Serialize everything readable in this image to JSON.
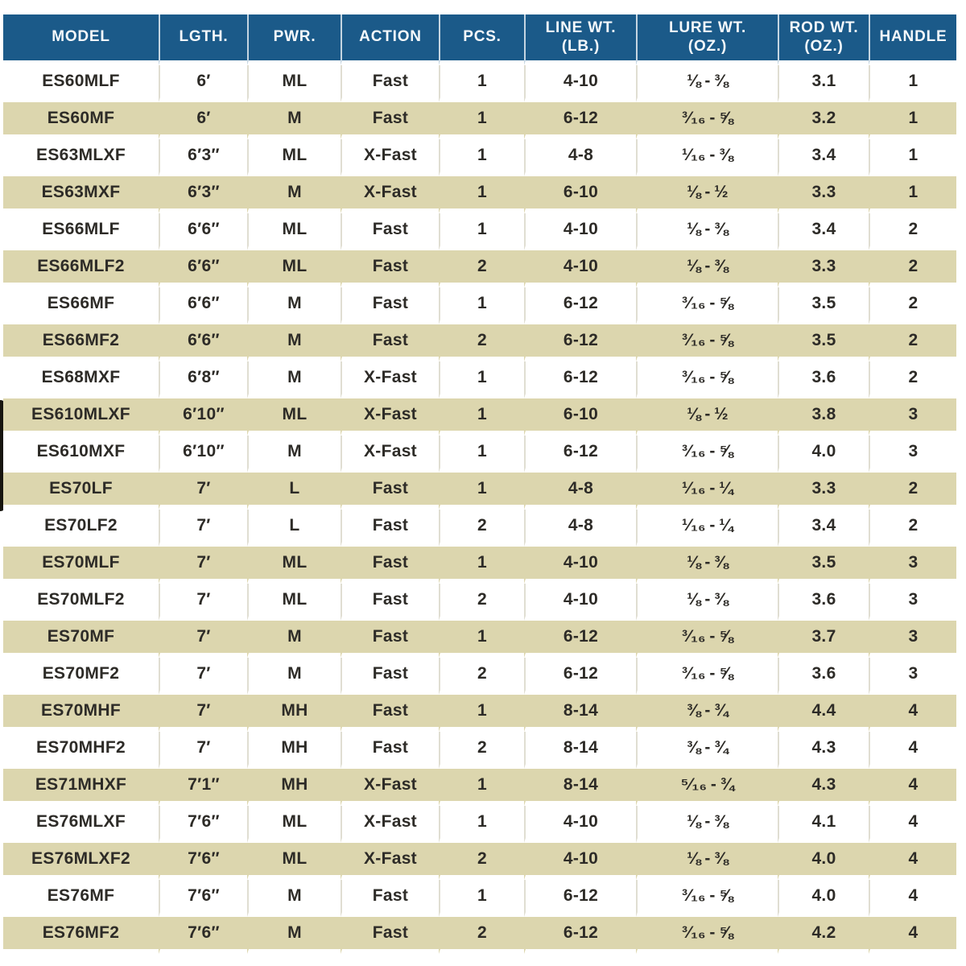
{
  "colors": {
    "header_bg": "#1b5a89",
    "header_text": "#f4f8fb",
    "row_bg": "#ffffff",
    "row_alt_bg": "#dcd6ae",
    "divider": "#e0ded2",
    "body_text": "#2d2b27"
  },
  "table": {
    "columns": [
      {
        "key": "model",
        "label": "MODEL"
      },
      {
        "key": "length",
        "label": "LGTH."
      },
      {
        "key": "power",
        "label": "PWR."
      },
      {
        "key": "action",
        "label": "ACTION"
      },
      {
        "key": "pieces",
        "label": "PCS."
      },
      {
        "key": "line_wt",
        "label": "LINE WT.",
        "sub": "(LB.)"
      },
      {
        "key": "lure_wt",
        "label": "LURE WT.",
        "sub": "(OZ.)"
      },
      {
        "key": "rod_wt",
        "label": "ROD WT.",
        "sub": "(OZ.)"
      },
      {
        "key": "handle",
        "label": "HANDLE"
      }
    ],
    "rows": [
      [
        "ES60MLF",
        "6′",
        "ML",
        "Fast",
        "1",
        "4-10",
        "⅛ - ⅜",
        "3.1",
        "1"
      ],
      [
        "ES60MF",
        "6′",
        "M",
        "Fast",
        "1",
        "6-12",
        "³⁄₁₆ - ⅝",
        "3.2",
        "1"
      ],
      [
        "ES63MLXF",
        "6′3″",
        "ML",
        "X-Fast",
        "1",
        "4-8",
        "¹⁄₁₆ - ⅜",
        "3.4",
        "1"
      ],
      [
        "ES63MXF",
        "6′3″",
        "M",
        "X-Fast",
        "1",
        "6-10",
        "⅛ - ½",
        "3.3",
        "1"
      ],
      [
        "ES66MLF",
        "6′6″",
        "ML",
        "Fast",
        "1",
        "4-10",
        "⅛ - ⅜",
        "3.4",
        "2"
      ],
      [
        "ES66MLF2",
        "6′6″",
        "ML",
        "Fast",
        "2",
        "4-10",
        "⅛ - ⅜",
        "3.3",
        "2"
      ],
      [
        "ES66MF",
        "6′6″",
        "M",
        "Fast",
        "1",
        "6-12",
        "³⁄₁₆ - ⅝",
        "3.5",
        "2"
      ],
      [
        "ES66MF2",
        "6′6″",
        "M",
        "Fast",
        "2",
        "6-12",
        "³⁄₁₆ - ⅝",
        "3.5",
        "2"
      ],
      [
        "ES68MXF",
        "6′8″",
        "M",
        "X-Fast",
        "1",
        "6-12",
        "³⁄₁₆ - ⅝",
        "3.6",
        "2"
      ],
      [
        "ES610MLXF",
        "6′10″",
        "ML",
        "X-Fast",
        "1",
        "6-10",
        "⅛ - ½",
        "3.8",
        "3"
      ],
      [
        "ES610MXF",
        "6′10″",
        "M",
        "X-Fast",
        "1",
        "6-12",
        "³⁄₁₆ - ⅝",
        "4.0",
        "3"
      ],
      [
        "ES70LF",
        "7′",
        "L",
        "Fast",
        "1",
        "4-8",
        "¹⁄₁₆ - ¼",
        "3.3",
        "2"
      ],
      [
        "ES70LF2",
        "7′",
        "L",
        "Fast",
        "2",
        "4-8",
        "¹⁄₁₆ - ¼",
        "3.4",
        "2"
      ],
      [
        "ES70MLF",
        "7′",
        "ML",
        "Fast",
        "1",
        "4-10",
        "⅛ - ⅜",
        "3.5",
        "3"
      ],
      [
        "ES70MLF2",
        "7′",
        "ML",
        "Fast",
        "2",
        "4-10",
        "⅛ - ⅜",
        "3.6",
        "3"
      ],
      [
        "ES70MF",
        "7′",
        "M",
        "Fast",
        "1",
        "6-12",
        "³⁄₁₆ - ⅝",
        "3.7",
        "3"
      ],
      [
        "ES70MF2",
        "7′",
        "M",
        "Fast",
        "2",
        "6-12",
        "³⁄₁₆ - ⅝",
        "3.6",
        "3"
      ],
      [
        "ES70MHF",
        "7′",
        "MH",
        "Fast",
        "1",
        "8-14",
        "⅜ - ¾",
        "4.4",
        "4"
      ],
      [
        "ES70MHF2",
        "7′",
        "MH",
        "Fast",
        "2",
        "8-14",
        "⅜ - ¾",
        "4.3",
        "4"
      ],
      [
        "ES71MHXF",
        "7′1″",
        "MH",
        "X-Fast",
        "1",
        "8-14",
        "⁵⁄₁₆ - ¾",
        "4.3",
        "4"
      ],
      [
        "ES76MLXF",
        "7′6″",
        "ML",
        "X-Fast",
        "1",
        "4-10",
        "⅛ - ⅜",
        "4.1",
        "4"
      ],
      [
        "ES76MLXF2",
        "7′6″",
        "ML",
        "X-Fast",
        "2",
        "4-10",
        "⅛ - ⅜",
        "4.0",
        "4"
      ],
      [
        "ES76MF",
        "7′6″",
        "M",
        "Fast",
        "1",
        "6-12",
        "³⁄₁₆ - ⅝",
        "4.0",
        "4"
      ],
      [
        "ES76MF2",
        "7′6″",
        "M",
        "Fast",
        "2",
        "6-12",
        "³⁄₁₆ - ⅝",
        "4.2",
        "4"
      ]
    ]
  }
}
